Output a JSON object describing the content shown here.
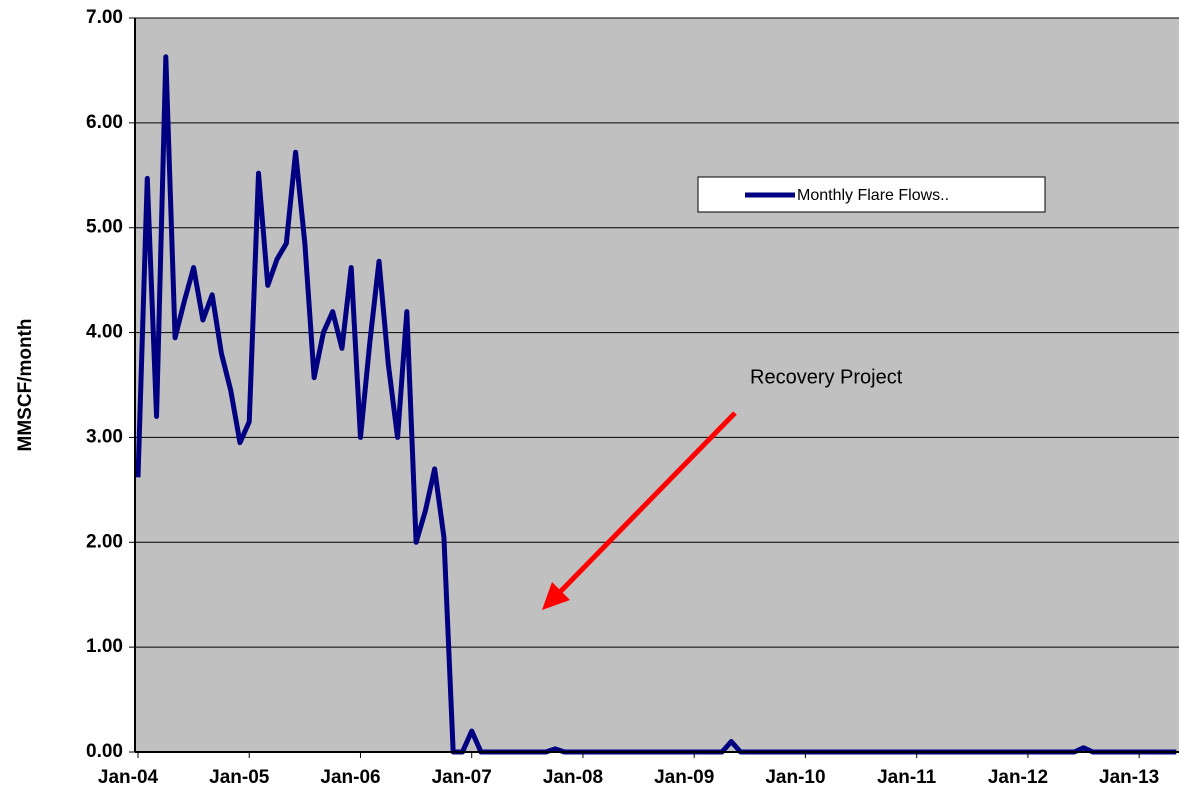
{
  "chart_data": {
    "type": "line",
    "y_label": "MMSCF/month",
    "annotation": "Recovery Project",
    "categories": [
      "Jan-04",
      null,
      null,
      null,
      null,
      null,
      null,
      null,
      null,
      null,
      null,
      null,
      "Jan-05",
      null,
      null,
      null,
      null,
      null,
      null,
      null,
      null,
      null,
      null,
      null,
      "Jan-06",
      null,
      null,
      null,
      null,
      null,
      null,
      null,
      null,
      null,
      null,
      null,
      "Jan-07",
      null,
      null,
      null,
      null,
      null,
      null,
      null,
      null,
      null,
      null,
      null,
      "Jan-08",
      null,
      null,
      null,
      null,
      null,
      null,
      null,
      null,
      null,
      null,
      null,
      "Jan-09",
      null,
      null,
      null,
      null,
      null,
      null,
      null,
      null,
      null,
      null,
      null,
      "Jan-10",
      null,
      null,
      null,
      null,
      null,
      null,
      null,
      null,
      null,
      null,
      null,
      "Jan-11",
      null,
      null,
      null,
      null,
      null,
      null,
      null,
      null,
      null,
      null,
      null,
      "Jan-12",
      null,
      null,
      null,
      null,
      null,
      null,
      null,
      null,
      null,
      null,
      null,
      "Jan-13",
      null,
      null,
      null,
      null
    ],
    "series": [
      {
        "name": "Monthly Flare Flows..",
        "color": "#000080",
        "values": [
          2.62,
          5.47,
          3.2,
          6.63,
          3.95,
          4.3,
          4.62,
          4.12,
          4.36,
          3.8,
          3.45,
          2.95,
          3.15,
          5.52,
          4.45,
          4.7,
          4.85,
          5.72,
          4.85,
          3.57,
          4.0,
          4.2,
          3.85,
          4.62,
          3.0,
          3.9,
          4.68,
          3.7,
          3.0,
          4.2,
          2.0,
          2.3,
          2.7,
          2.05,
          0,
          0,
          0.2,
          0,
          0,
          0,
          0,
          0,
          0,
          0,
          0,
          0.03,
          0,
          0,
          0,
          0,
          0,
          0,
          0,
          0,
          0,
          0,
          0,
          0,
          0,
          0,
          0,
          0,
          0,
          0,
          0.1,
          0,
          0,
          0,
          0,
          0,
          0,
          0,
          0,
          0,
          0,
          0,
          0,
          0,
          0,
          0,
          0,
          0,
          0,
          0,
          0,
          0,
          0,
          0,
          0,
          0,
          0,
          0,
          0,
          0,
          0,
          0,
          0,
          0,
          0,
          0,
          0,
          0,
          0.04,
          0,
          0,
          0,
          0,
          0,
          0,
          0,
          0,
          0,
          0
        ]
      }
    ],
    "ylim": [
      0,
      7
    ],
    "yticks": [
      {
        "value": 0,
        "label": "0.00"
      },
      {
        "value": 1,
        "label": "1.00"
      },
      {
        "value": 2,
        "label": "2.00"
      },
      {
        "value": 3,
        "label": "3.00"
      },
      {
        "value": 4,
        "label": "4.00"
      },
      {
        "value": 5,
        "label": "5.00"
      },
      {
        "value": 6,
        "label": "6.00"
      },
      {
        "value": 7,
        "label": "7.00"
      }
    ],
    "grid": true
  }
}
